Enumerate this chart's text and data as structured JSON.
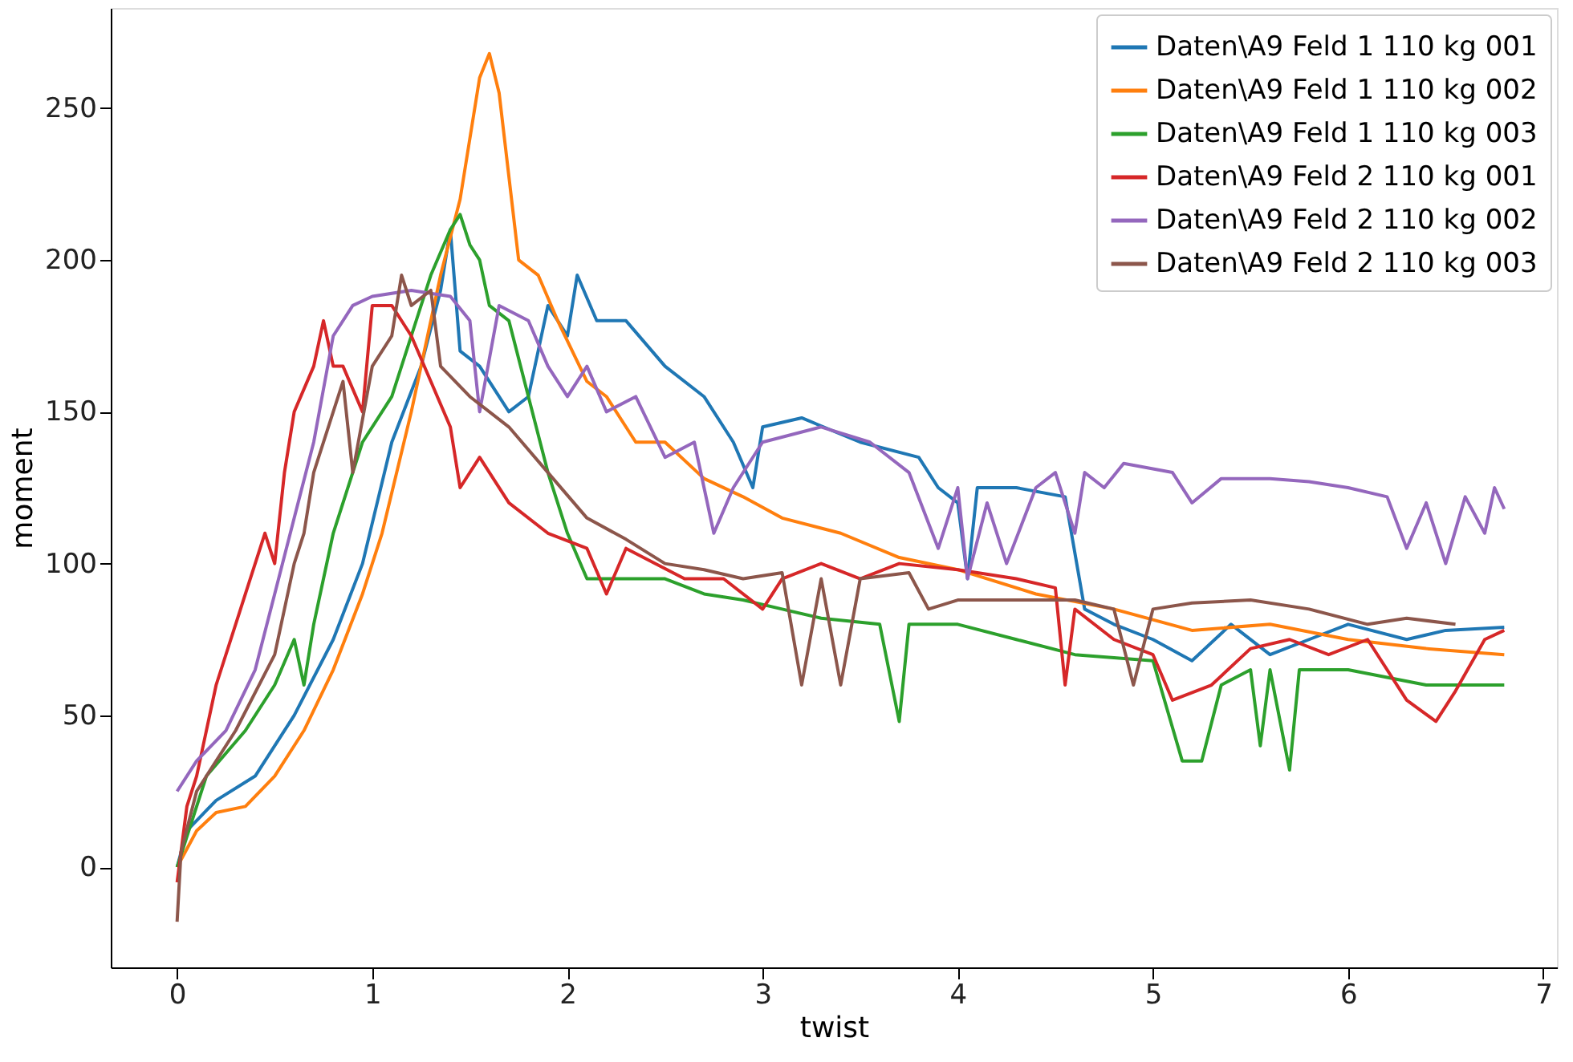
{
  "chart_data": {
    "type": "line",
    "xlabel": "twist",
    "ylabel": "moment",
    "xlim": [
      -0.34,
      7.07
    ],
    "ylim": [
      -33,
      283
    ],
    "xticks": [
      0,
      1,
      2,
      3,
      4,
      5,
      6,
      7
    ],
    "yticks": [
      0,
      50,
      100,
      150,
      200,
      250
    ],
    "grid": false,
    "legend": "top right",
    "line_style": "solid",
    "marker": "none",
    "series": [
      {
        "name": "Daten\\A9 Feld 1 110 kg 001",
        "color": "#1f77b4",
        "x": [
          0,
          0.05,
          0.2,
          0.4,
          0.6,
          0.8,
          0.95,
          1.1,
          1.25,
          1.35,
          1.4,
          1.45,
          1.55,
          1.7,
          1.8,
          1.9,
          2.0,
          2.05,
          2.15,
          2.3,
          2.5,
          2.7,
          2.85,
          2.95,
          3.0,
          3.2,
          3.5,
          3.8,
          3.9,
          4.0,
          4.05,
          4.1,
          4.3,
          4.55,
          4.65,
          4.8,
          5.0,
          5.2,
          5.4,
          5.6,
          5.8,
          6.0,
          6.3,
          6.5,
          6.8
        ],
        "values": [
          0,
          12,
          22,
          30,
          50,
          75,
          100,
          140,
          165,
          190,
          210,
          170,
          165,
          150,
          155,
          185,
          175,
          195,
          180,
          180,
          165,
          155,
          140,
          125,
          145,
          148,
          140,
          135,
          125,
          120,
          95,
          125,
          125,
          122,
          85,
          80,
          75,
          68,
          80,
          70,
          75,
          80,
          75,
          78,
          79
        ]
      },
      {
        "name": "Daten\\A9 Feld 1 110 kg 002",
        "color": "#ff7f0e",
        "x": [
          0,
          0.1,
          0.2,
          0.35,
          0.5,
          0.65,
          0.8,
          0.95,
          1.05,
          1.2,
          1.35,
          1.45,
          1.55,
          1.6,
          1.65,
          1.75,
          1.85,
          1.95,
          2.1,
          2.2,
          2.35,
          2.5,
          2.7,
          2.9,
          3.1,
          3.4,
          3.7,
          4.0,
          4.4,
          4.8,
          5.2,
          5.6,
          6.0,
          6.4,
          6.8
        ],
        "values": [
          0,
          12,
          18,
          20,
          30,
          45,
          65,
          90,
          110,
          150,
          195,
          220,
          260,
          268,
          255,
          200,
          195,
          180,
          160,
          155,
          140,
          140,
          128,
          122,
          115,
          110,
          102,
          98,
          90,
          85,
          78,
          80,
          75,
          72,
          70
        ]
      },
      {
        "name": "Daten\\A9 Feld 1 110 kg 003",
        "color": "#2ca02c",
        "x": [
          0,
          0.05,
          0.15,
          0.35,
          0.5,
          0.6,
          0.65,
          0.7,
          0.8,
          0.95,
          1.1,
          1.2,
          1.3,
          1.4,
          1.45,
          1.5,
          1.55,
          1.6,
          1.7,
          1.8,
          1.9,
          2.0,
          2.1,
          2.3,
          2.5,
          2.7,
          2.9,
          3.1,
          3.3,
          3.6,
          3.7,
          3.75,
          4.0,
          4.3,
          4.6,
          5.0,
          5.15,
          5.25,
          5.35,
          5.5,
          5.55,
          5.6,
          5.7,
          5.75,
          6.0,
          6.4,
          6.8
        ],
        "values": [
          0,
          10,
          30,
          45,
          60,
          75,
          60,
          80,
          110,
          140,
          155,
          175,
          195,
          210,
          215,
          205,
          200,
          185,
          180,
          155,
          130,
          110,
          95,
          95,
          95,
          90,
          88,
          85,
          82,
          80,
          48,
          80,
          80,
          75,
          70,
          68,
          35,
          35,
          60,
          65,
          40,
          65,
          32,
          65,
          65,
          60,
          60
        ]
      },
      {
        "name": "Daten\\A9 Feld 2 110 kg 001",
        "color": "#d62728",
        "x": [
          0,
          0.05,
          0.1,
          0.2,
          0.35,
          0.45,
          0.5,
          0.55,
          0.6,
          0.7,
          0.75,
          0.8,
          0.85,
          0.95,
          1.0,
          1.1,
          1.2,
          1.3,
          1.4,
          1.45,
          1.55,
          1.7,
          1.9,
          2.1,
          2.2,
          2.3,
          2.6,
          2.8,
          3.0,
          3.1,
          3.3,
          3.5,
          3.7,
          4.0,
          4.3,
          4.5,
          4.55,
          4.6,
          4.8,
          5.0,
          5.1,
          5.3,
          5.5,
          5.7,
          5.9,
          6.1,
          6.3,
          6.45,
          6.55,
          6.7,
          6.8
        ],
        "values": [
          -5,
          20,
          30,
          60,
          90,
          110,
          100,
          130,
          150,
          165,
          180,
          165,
          165,
          150,
          185,
          185,
          175,
          160,
          145,
          125,
          135,
          120,
          110,
          105,
          90,
          105,
          95,
          95,
          85,
          95,
          100,
          95,
          100,
          98,
          95,
          92,
          60,
          85,
          75,
          70,
          55,
          60,
          72,
          75,
          70,
          75,
          55,
          48,
          58,
          75,
          78
        ]
      },
      {
        "name": "Daten\\A9 Feld 2 110 kg 002",
        "color": "#9467bd",
        "x": [
          0,
          0.1,
          0.25,
          0.4,
          0.5,
          0.6,
          0.7,
          0.8,
          0.9,
          1.0,
          1.2,
          1.4,
          1.5,
          1.55,
          1.65,
          1.8,
          1.9,
          2.0,
          2.1,
          2.2,
          2.35,
          2.5,
          2.65,
          2.75,
          2.85,
          3.0,
          3.3,
          3.55,
          3.75,
          3.9,
          4.0,
          4.05,
          4.15,
          4.25,
          4.4,
          4.5,
          4.6,
          4.65,
          4.75,
          4.85,
          5.1,
          5.2,
          5.35,
          5.6,
          5.8,
          6.0,
          6.2,
          6.3,
          6.4,
          6.5,
          6.6,
          6.7,
          6.75,
          6.8
        ],
        "values": [
          25,
          35,
          45,
          65,
          90,
          115,
          140,
          175,
          185,
          188,
          190,
          188,
          180,
          150,
          185,
          180,
          165,
          155,
          165,
          150,
          155,
          135,
          140,
          110,
          125,
          140,
          145,
          140,
          130,
          105,
          125,
          95,
          120,
          100,
          125,
          130,
          110,
          130,
          125,
          133,
          130,
          120,
          128,
          128,
          127,
          125,
          122,
          105,
          120,
          100,
          122,
          110,
          125,
          118
        ]
      },
      {
        "name": "Daten\\A9 Feld 2 110 kg 003",
        "color": "#8c564b",
        "x": [
          0,
          0.02,
          0.1,
          0.3,
          0.5,
          0.6,
          0.65,
          0.7,
          0.8,
          0.85,
          0.9,
          1.0,
          1.1,
          1.15,
          1.2,
          1.3,
          1.35,
          1.5,
          1.7,
          1.9,
          2.1,
          2.3,
          2.5,
          2.7,
          2.9,
          3.1,
          3.2,
          3.3,
          3.4,
          3.5,
          3.75,
          3.85,
          4.0,
          4.2,
          4.4,
          4.6,
          4.8,
          4.9,
          5.0,
          5.2,
          5.5,
          5.8,
          6.1,
          6.3,
          6.55
        ],
        "values": [
          -18,
          5,
          25,
          45,
          70,
          100,
          110,
          130,
          150,
          160,
          130,
          165,
          175,
          195,
          185,
          190,
          165,
          155,
          145,
          130,
          115,
          108,
          100,
          98,
          95,
          97,
          60,
          95,
          60,
          95,
          97,
          85,
          88,
          88,
          88,
          88,
          85,
          60,
          85,
          87,
          88,
          85,
          80,
          82,
          80
        ]
      }
    ]
  }
}
